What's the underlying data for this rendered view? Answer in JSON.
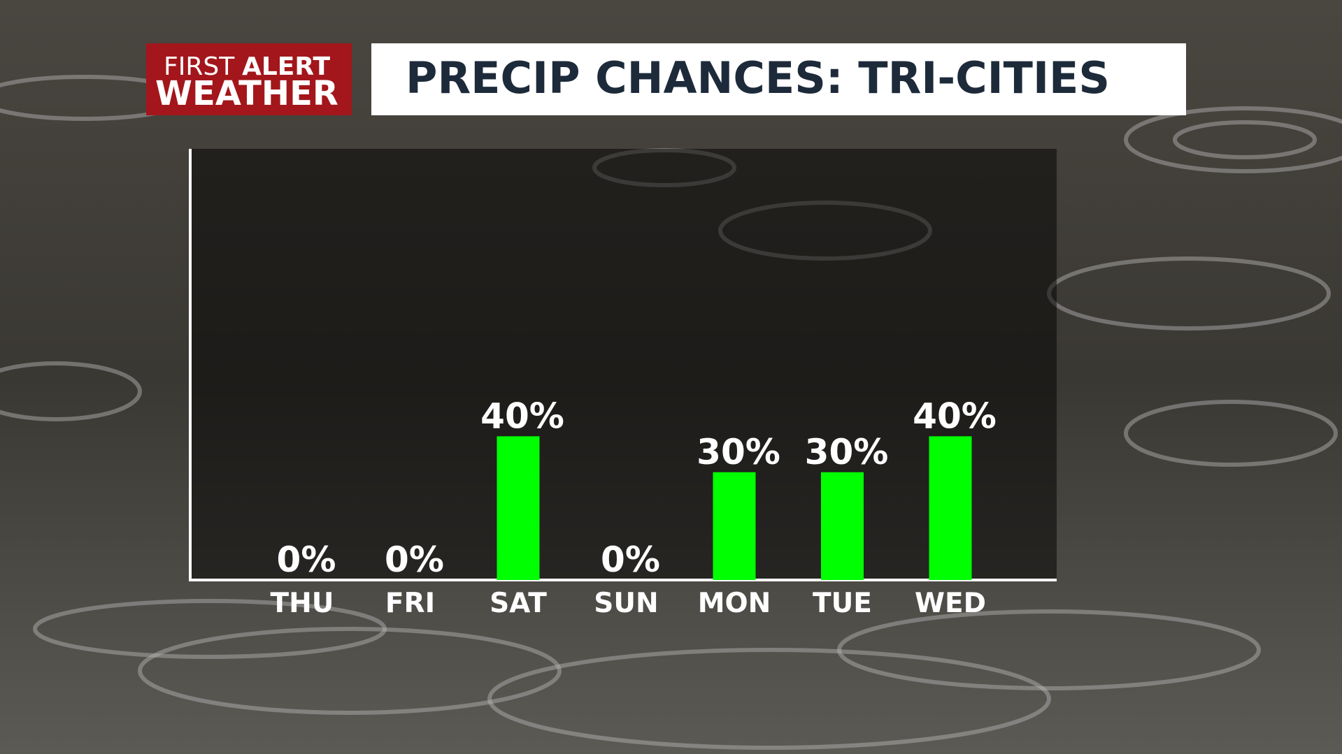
{
  "logo": {
    "line1a": "FIRST",
    "line1b": "ALERT",
    "line2": "WEATHER"
  },
  "chart_data": {
    "type": "bar",
    "title": "PRECIP CHANCES: TRI-CITIES",
    "categories": [
      "THU",
      "FRI",
      "SAT",
      "SUN",
      "MON",
      "TUE",
      "WED"
    ],
    "values": [
      0,
      0,
      40,
      0,
      30,
      30,
      40
    ],
    "value_labels": [
      "0%",
      "0%",
      "40%",
      "0%",
      "30%",
      "30%",
      "40%"
    ],
    "color": "#00ff00",
    "ylim": [
      0,
      120
    ]
  }
}
